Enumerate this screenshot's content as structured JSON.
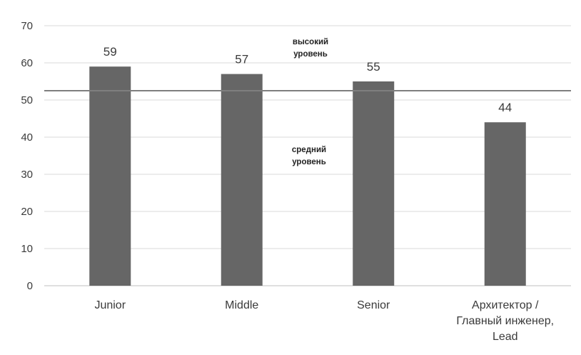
{
  "chart_data": {
    "type": "bar",
    "categories": [
      [
        "Junior"
      ],
      [
        "Middle"
      ],
      [
        "Senior"
      ],
      [
        "Архитектор /",
        "Главный инженер,",
        "Lead"
      ]
    ],
    "values": [
      59,
      57,
      55,
      44
    ],
    "data_labels": [
      "59",
      "57",
      "55",
      "44"
    ],
    "ylim": [
      0,
      70
    ],
    "yticks": [
      "0",
      "10",
      "20",
      "30",
      "40",
      "50",
      "60",
      "70"
    ],
    "grid": true,
    "threshold": 52.5,
    "annotations": {
      "above": [
        "высокий",
        "уровень"
      ],
      "below": [
        "средний",
        "уровень"
      ]
    },
    "colors": {
      "bar": "#666666",
      "grid": "#d9d9d9",
      "threshold": "#7f7f7f",
      "axis": "#bfbfbf"
    }
  }
}
